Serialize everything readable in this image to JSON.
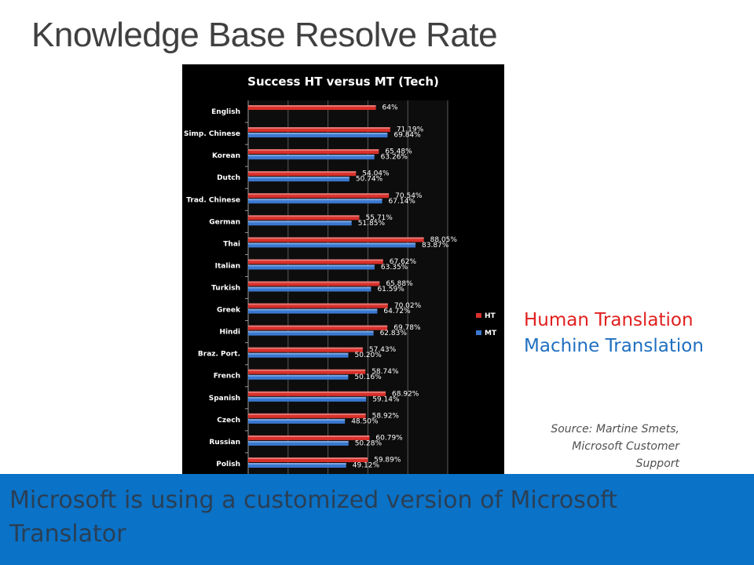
{
  "slide": {
    "title": "Knowledge Base Resolve Rate",
    "legend_human": "Human Translation",
    "legend_machine": "Machine Translation",
    "source": "Source: Martine Smets, Microsoft Customer Support",
    "banner": "Microsoft is using a customized version of Microsoft Translator"
  },
  "colors": {
    "ht": "#d9302a",
    "mt": "#3a78d0",
    "banner": "#0a72c7",
    "panel": "#000000"
  },
  "chart_data": {
    "type": "bar",
    "orientation": "horizontal",
    "title": "Success HT versus MT (Tech)",
    "categories": [
      "English",
      "Simp. Chinese",
      "Korean",
      "Dutch",
      "Trad. Chinese",
      "German",
      "Thai",
      "Italian",
      "Turkish",
      "Greek",
      "Hindi",
      "Braz. Port.",
      "French",
      "Spanish",
      "Czech",
      "Russian",
      "Polish"
    ],
    "series": [
      {
        "name": "HT",
        "values": [
          64,
          71.19,
          65.48,
          54.04,
          70.54,
          55.71,
          88.05,
          67.62,
          65.88,
          70.02,
          69.78,
          57.43,
          58.74,
          68.92,
          58.92,
          60.79,
          59.89
        ],
        "labels": [
          "64%",
          "71.19%",
          "65.48%",
          "54.04%",
          "70.54%",
          "55.71%",
          "88.05%",
          "67.62%",
          "65.88%",
          "70.02%",
          "69.78%",
          "57.43%",
          "58.74%",
          "68.92%",
          "58.92%",
          "60.79%",
          "59.89%"
        ]
      },
      {
        "name": "MT",
        "values": [
          null,
          69.84,
          63.26,
          50.74,
          67.14,
          51.85,
          83.87,
          63.35,
          61.59,
          64.72,
          62.83,
          50.2,
          50.16,
          59.14,
          48.5,
          50.28,
          49.12
        ],
        "labels": [
          "",
          "69.84%",
          "63.26%",
          "50.74%",
          "67.14%",
          "51.85%",
          "83.87%",
          "63.35%",
          "61.59%",
          "64.72%",
          "62.83%",
          "50.20%",
          "50.16%",
          "59.14%",
          "48.50%",
          "50.28%",
          "49.12%"
        ]
      }
    ],
    "xlim": [
      0,
      100
    ],
    "grid": true,
    "legend_position": "right"
  }
}
